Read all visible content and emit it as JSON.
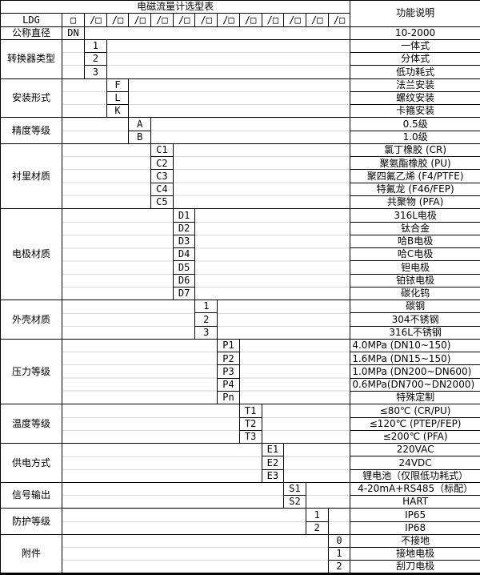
{
  "title": "电磁流量计选型表",
  "function_header": "功能说明",
  "model_row": {
    "label": "LDG",
    "first_box": "□",
    "slash_boxes": [
      "/□",
      "/□",
      "/□",
      "/□",
      "/□",
      "/□",
      "/□",
      "/□",
      "/□",
      "/□",
      "/□",
      "/□"
    ]
  },
  "sections": [
    {
      "label": "公称直径",
      "col": 1,
      "rows": [
        {
          "code": "DN",
          "func": "10-2000"
        }
      ]
    },
    {
      "label": "转换器类型",
      "col": 2,
      "rows": [
        {
          "code": "1",
          "func": "一体式"
        },
        {
          "code": "2",
          "func": "分体式"
        },
        {
          "code": "3",
          "func": "低功耗式"
        }
      ]
    },
    {
      "label": "安装形式",
      "col": 3,
      "rows": [
        {
          "code": "F",
          "func": "法兰安装"
        },
        {
          "code": "L",
          "func": "螺纹安装"
        },
        {
          "code": "K",
          "func": "卡箍安装"
        }
      ]
    },
    {
      "label": "精度等级",
      "col": 4,
      "rows": [
        {
          "code": "A",
          "func": "0.5级"
        },
        {
          "code": "B",
          "func": "1.0级"
        }
      ]
    },
    {
      "label": "衬里材质",
      "col": 5,
      "rows": [
        {
          "code": "C1",
          "func": "氯丁橡胶 (CR)"
        },
        {
          "code": "C2",
          "func": "聚氨酯橡胶 (PU)"
        },
        {
          "code": "C3",
          "func": "聚四氟乙烯 (F4/PTFE)"
        },
        {
          "code": "C4",
          "func": "特氟龙 (F46/FEP)"
        },
        {
          "code": "C5",
          "func": "共聚物 (PFA)"
        }
      ]
    },
    {
      "label": "电极材质",
      "col": 6,
      "rows": [
        {
          "code": "D1",
          "func": "316L电极"
        },
        {
          "code": "D2",
          "func": "钛合金"
        },
        {
          "code": "D3",
          "func": "哈B电极"
        },
        {
          "code": "D4",
          "func": "哈C电极"
        },
        {
          "code": "D5",
          "func": "钽电极"
        },
        {
          "code": "D6",
          "func": "铂铱电极"
        },
        {
          "code": "D7",
          "func": "碳化钨"
        }
      ]
    },
    {
      "label": "外壳材质",
      "col": 7,
      "rows": [
        {
          "code": "1",
          "func": "碳钢"
        },
        {
          "code": "2",
          "func": "304不锈钢"
        },
        {
          "code": "3",
          "func": "316L不锈钢"
        }
      ]
    },
    {
      "label": "压力等级",
      "col": 8,
      "rows": [
        {
          "code": "P1",
          "func": "4.0MPa (DN10~150)",
          "align": "left"
        },
        {
          "code": "P2",
          "func": "1.6MPa (DN15~150)",
          "align": "left"
        },
        {
          "code": "P3",
          "func": "1.0MPa (DN200~DN600)",
          "align": "left"
        },
        {
          "code": "P4",
          "func": "0.6MPa(DN700~DN2000)",
          "align": "left"
        },
        {
          "code": "Pn",
          "func": "特殊定制"
        }
      ]
    },
    {
      "label": "温度等级",
      "col": 9,
      "rows": [
        {
          "code": "T1",
          "func": "≤80℃ (CR/PU)"
        },
        {
          "code": "T2",
          "func": "≤120℃ (PTEP/FEP)"
        },
        {
          "code": "T3",
          "func": "≤200℃ (PFA)"
        }
      ]
    },
    {
      "label": "供电方式",
      "col": 10,
      "rows": [
        {
          "code": "E1",
          "func": "220VAC"
        },
        {
          "code": "E2",
          "func": "24VDC"
        },
        {
          "code": "E3",
          "func": "锂电池（仅限低功耗式）"
        }
      ]
    },
    {
      "label": "信号输出",
      "col": 11,
      "rows": [
        {
          "code": "S1",
          "func": "4-20mA+RS485（标配）"
        },
        {
          "code": "S2",
          "func": "HART"
        }
      ]
    },
    {
      "label": "防护等级",
      "col": 12,
      "rows": [
        {
          "code": "1",
          "func": "IP65"
        },
        {
          "code": "2",
          "func": "IP68"
        }
      ]
    },
    {
      "label": "附件",
      "col": 13,
      "rows": [
        {
          "code": "0",
          "func": "不接地"
        },
        {
          "code": "1",
          "func": "接地电极"
        },
        {
          "code": "2",
          "func": "刮刀电极"
        }
      ]
    }
  ],
  "colors": {
    "border": "#000000",
    "background": "#ffffff",
    "text": "#000000",
    "faint_gridline": "#dadada"
  }
}
